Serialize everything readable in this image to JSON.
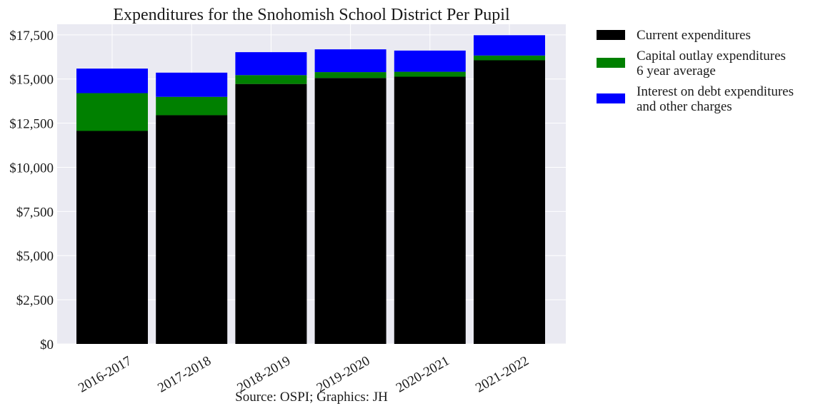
{
  "chart_data": {
    "type": "bar",
    "stacked": true,
    "title": "Expenditures for the Snohomish School District Per Pupil",
    "xlabel": "Source: OSPI; Graphics: JH",
    "ylabel": "",
    "categories": [
      "2016-2017",
      "2017-2018",
      "2018-2019",
      "2019-2020",
      "2020-2021",
      "2021-2022"
    ],
    "y_ticks": [
      0,
      2500,
      5000,
      7500,
      10000,
      12500,
      15000,
      17500
    ],
    "y_tick_labels": [
      "$0",
      "$2,500",
      "$5,000",
      "$7,500",
      "$10,000",
      "$12,500",
      "$15,000",
      "$17,500"
    ],
    "ylim": [
      0,
      18100
    ],
    "grid": true,
    "legend_position": "outside-right",
    "series": [
      {
        "name": "Current expenditures",
        "color": "#000000",
        "values": [
          12060,
          12950,
          14720,
          15060,
          15130,
          16060
        ]
      },
      {
        "name": "Capital outlay expenditures\n6 year average",
        "color": "#008000",
        "values": [
          2140,
          1040,
          500,
          330,
          280,
          270
        ]
      },
      {
        "name": "Interest on debt expenditures\nand other charges",
        "color": "#0000ff",
        "values": [
          1390,
          1370,
          1300,
          1290,
          1200,
          1150
        ]
      }
    ]
  }
}
